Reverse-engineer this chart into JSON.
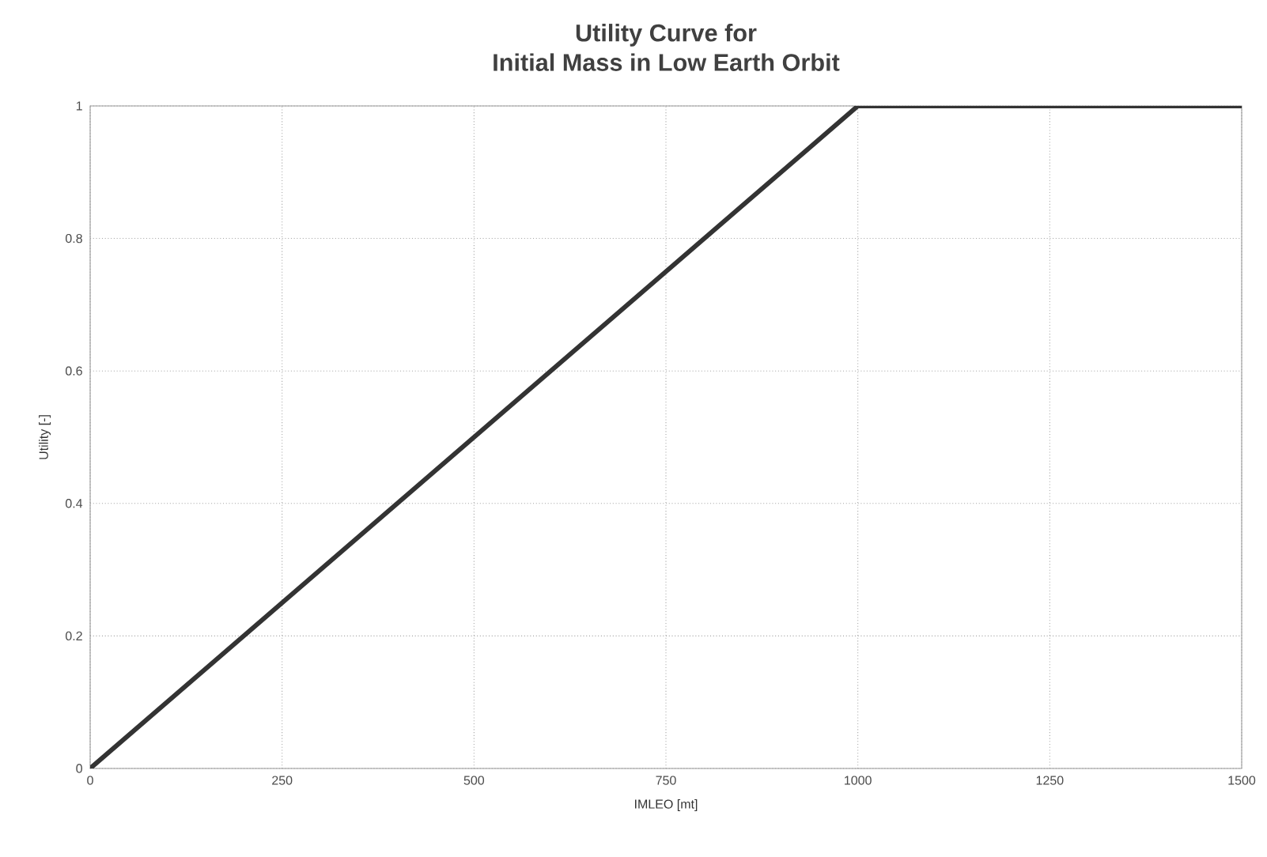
{
  "chart_data": {
    "type": "line",
    "title": "Utility Curve for\nInitial Mass in Low Earth Orbit",
    "xlabel": "IMLEO [mt]",
    "ylabel": "Utility [-]",
    "x": [
      0,
      1000,
      1500
    ],
    "series": [
      {
        "color": "#333333",
        "values": [
          0,
          1,
          1
        ]
      }
    ],
    "xlim": [
      0,
      1500
    ],
    "ylim": [
      0,
      1
    ],
    "xticks": [
      0,
      250,
      500,
      750,
      1000,
      1250,
      1500
    ],
    "yticks": [
      0,
      0.2,
      0.4,
      0.6,
      0.8,
      1
    ],
    "grid": true,
    "marker": "none",
    "line_style": "solid"
  }
}
